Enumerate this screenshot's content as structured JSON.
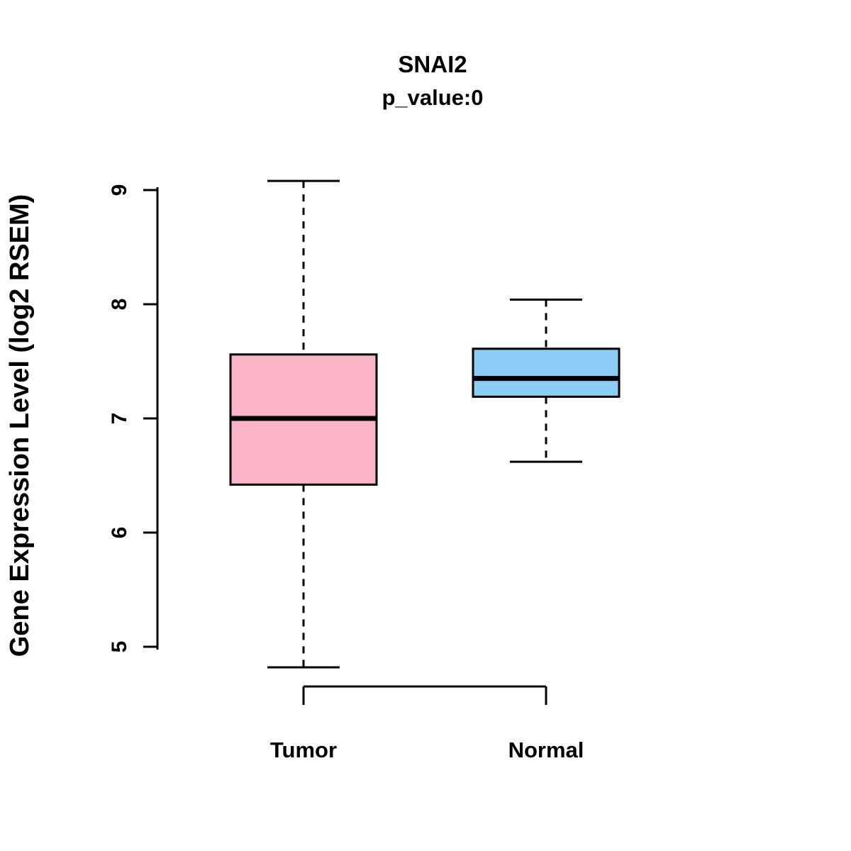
{
  "chart_data": {
    "type": "boxplot",
    "title": "SNAI2",
    "subtitle": "p_value:0",
    "ylabel": "Gene Expression Level (log2 RSEM)",
    "xlabel": "",
    "yticks": [
      5,
      6,
      7,
      8,
      9
    ],
    "ylim": [
      4.6,
      9.3
    ],
    "grid": false,
    "legend": "none",
    "categories": [
      "Tumor",
      "Normal"
    ],
    "series": [
      {
        "name": "Tumor",
        "color": "#FBB4C6",
        "whisker_low": 4.82,
        "q1": 6.42,
        "median": 7.0,
        "q3": 7.56,
        "whisker_high": 9.08
      },
      {
        "name": "Normal",
        "color": "#8DCCF4",
        "whisker_low": 6.62,
        "q1": 7.19,
        "median": 7.35,
        "q3": 7.61,
        "whisker_high": 8.04
      }
    ]
  },
  "colors": {
    "axis": "#000000",
    "background": "#FFFFFF",
    "box_border": "#000000",
    "median_line": "#000000"
  }
}
